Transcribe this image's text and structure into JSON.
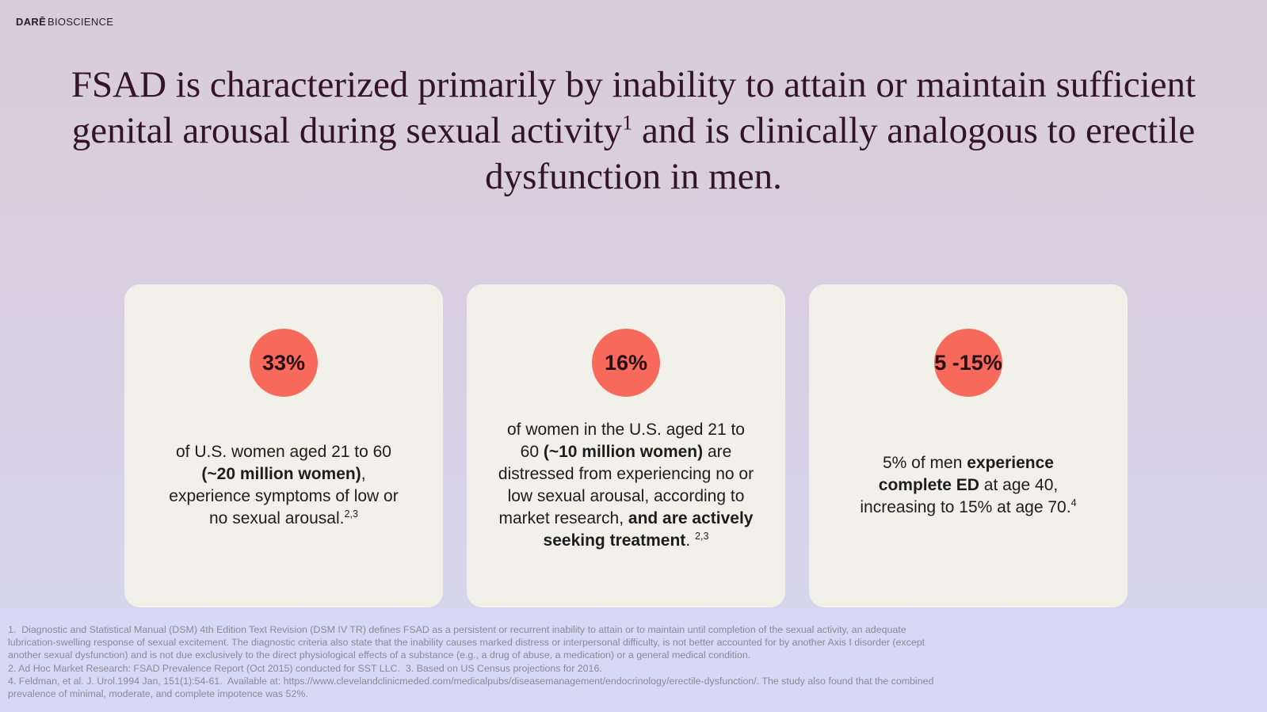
{
  "brand": {
    "name_bold": "DARĒ",
    "name_regular": "BIOSCIENCE"
  },
  "title": {
    "lines": [
      [
        {
          "t": "FSAD is characterized primarily by inability to attain or maintain sufficient"
        }
      ],
      [
        {
          "t": "genital arousal during sexual activity"
        },
        {
          "t": "1",
          "sup": true
        },
        {
          "t": " and is clinically analogous to erectile"
        }
      ],
      [
        {
          "t": "dysfunction in men."
        }
      ]
    ]
  },
  "stat_cards": [
    {
      "badge": "33%",
      "lines": [
        [
          {
            "t": "of U.S. women aged 21 to 60"
          }
        ],
        [
          {
            "t": "(~20 million women)",
            "b": true
          },
          {
            "t": ","
          }
        ],
        [
          {
            "t": "experience symptoms of low or"
          }
        ],
        [
          {
            "t": "no sexual arousal."
          },
          {
            "t": "2,3",
            "sup": true
          }
        ]
      ]
    },
    {
      "badge": "16%",
      "lines": [
        [
          {
            "t": "of women in the U.S. aged 21 to"
          }
        ],
        [
          {
            "t": "60 "
          },
          {
            "t": "(~10 million women)",
            "b": true
          },
          {
            "t": " are"
          }
        ],
        [
          {
            "t": "distressed from experiencing no or"
          }
        ],
        [
          {
            "t": "low sexual arousal, according to"
          }
        ],
        [
          {
            "t": "market research, "
          },
          {
            "t": "and are actively",
            "b": true
          }
        ],
        [
          {
            "t": "seeking treatment",
            "b": true
          },
          {
            "t": ". "
          },
          {
            "t": "2,3",
            "sup": true
          }
        ]
      ]
    },
    {
      "badge": "5 -15%",
      "lines": [
        [
          {
            "t": "5% of men "
          },
          {
            "t": "experience",
            "b": true
          }
        ],
        [
          {
            "t": "complete ED",
            "b": true
          },
          {
            "t": " at age 40,"
          }
        ],
        [
          {
            "t": "increasing to 15% at age 70."
          },
          {
            "t": "4",
            "sup": true
          }
        ]
      ]
    }
  ],
  "footnotes": {
    "lines": [
      "1.  Diagnostic and Statistical Manual (DSM) 4th Edition Text Revision (DSM IV TR) defines FSAD as a persistent or recurrent inability to attain or to maintain until completion of the sexual activity, an adequate",
      "lubrication-swelling response of sexual excitement. The diagnostic criteria also state that the inability causes marked distress or interpersonal difficulty, is not better accounted for by another Axis I disorder (except",
      "another sexual dysfunction) and is not due exclusively to the direct physiological effects of a substance (e.g., a drug of abuse, a medication) or a general medical condition.",
      "2. Ad Hoc Market Research: FSAD Prevalence Report (Oct 2015) conducted for SST LLC.  3. Based on US Census projections for 2016.",
      "4. Feldman, et al. J. Urol.1994 Jan, 151(1):54-61.  Available at: https://www.clevelandclinicmeded.com/medicalpubs/diseasemanagement/endocrinology/erectile-dysfunction/. The study also found that the combined",
      "prevalence of minimal, moderate, and complete impotence was 52%."
    ]
  },
  "colors": {
    "accent_circle": "#F6695B",
    "card_background": "#F1F1E9",
    "title_text": "#341526",
    "body_text": "#1D1D1D",
    "badge_text": "#240F16",
    "footnote_text": "#8B8795",
    "footnote_background": "#D6D9F5",
    "page_gradient_top": "#D9CCD9",
    "page_gradient_bottom": "#D7D7F0"
  }
}
